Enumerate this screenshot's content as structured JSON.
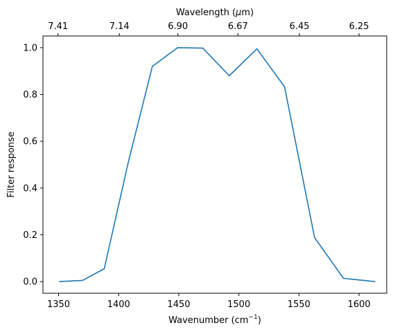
{
  "chart_data": {
    "type": "line",
    "grid": false,
    "xlabel_text": "Wavenumber (cm",
    "xlabel_sup": "−1",
    "xlabel_close": ")",
    "ylabel": "Filter response",
    "top_xlabel_text": "Wavelength (",
    "top_xlabel_mu": "μ",
    "top_xlabel_close": "m)",
    "xlim": [
      1337,
      1623
    ],
    "ylim": [
      -0.05,
      1.05
    ],
    "xticks": [
      1350,
      1400,
      1450,
      1500,
      1550,
      1600
    ],
    "xtick_labels": [
      "1350",
      "1400",
      "1450",
      "1500",
      "1550",
      "1600"
    ],
    "yticks": [
      0.0,
      0.2,
      0.4,
      0.6,
      0.8,
      1.0
    ],
    "ytick_labels": [
      "0.0",
      "0.2",
      "0.4",
      "0.6",
      "0.8",
      "1.0"
    ],
    "top_xticks": [
      7.41,
      7.14,
      6.9,
      6.67,
      6.45,
      6.25
    ],
    "top_xtick_labels": [
      "7.41",
      "7.14",
      "6.90",
      "6.67",
      "6.45",
      "6.25"
    ],
    "series": [
      {
        "color": "#1f77b4",
        "x": [
          1351,
          1370,
          1388,
          1408,
          1428,
          1449,
          1470,
          1492,
          1515,
          1538,
          1563,
          1587,
          1613
        ],
        "y": [
          0.0,
          0.005,
          0.055,
          0.51,
          0.92,
          1.0,
          0.998,
          0.88,
          0.995,
          0.833,
          0.188,
          0.014,
          0.0
        ]
      }
    ]
  }
}
